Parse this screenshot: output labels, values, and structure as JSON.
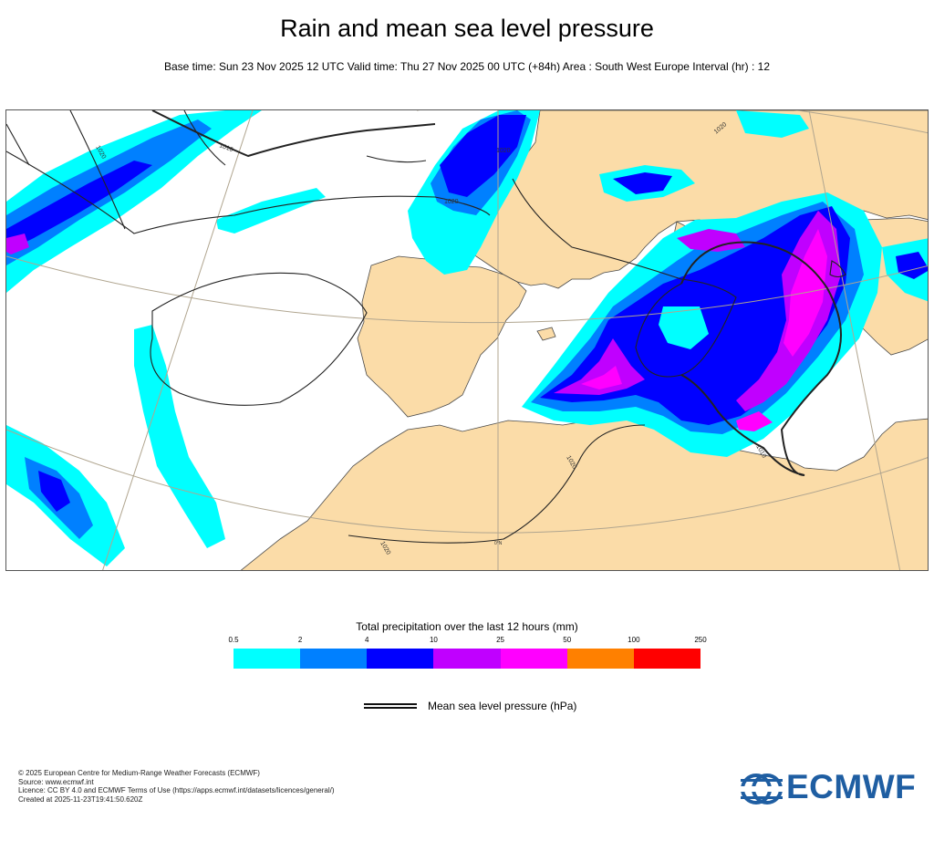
{
  "title": "Rain and mean sea level pressure",
  "subtitle": "Base time: Sun 23 Nov 2025 12 UTC Valid time: Thu 27 Nov 2025 00 UTC (+84h) Area : South West Europe Interval (hr) : 12",
  "map": {
    "isobar_labels": [
      "1020",
      "1010",
      "1020",
      "1020",
      "1020",
      "1020",
      "1010",
      "1020"
    ],
    "graticule_label": "0°N",
    "colors": {
      "land": "#fbdca8",
      "sea": "#ffffff",
      "coast": "#4a4a4a",
      "graticule": "#b0a58f",
      "isobar": "#222222"
    }
  },
  "colorbar": {
    "title": "Total precipitation over the last 12 hours (mm)",
    "ticks": [
      "0.5",
      "2",
      "4",
      "10",
      "25",
      "50",
      "100",
      "250"
    ],
    "colors": [
      "#00ffff",
      "#0080ff",
      "#0000ff",
      "#c000ff",
      "#ff00ff",
      "#ff8000",
      "#ff0000"
    ]
  },
  "legend": {
    "label": "Mean sea level pressure (hPa)"
  },
  "footer": {
    "lines": [
      "© 2025 European Centre for Medium-Range Weather Forecasts (ECMWF)",
      "Source: www.ecmwf.int",
      "Licence: CC BY 4.0 and ECMWF Terms of Use (https://apps.ecmwf.int/datasets/licences/general/)",
      "Created at 2025-11-23T19:41:50.620Z"
    ]
  },
  "logo": {
    "text": "ECMWF",
    "color": "#1f5ea2"
  }
}
